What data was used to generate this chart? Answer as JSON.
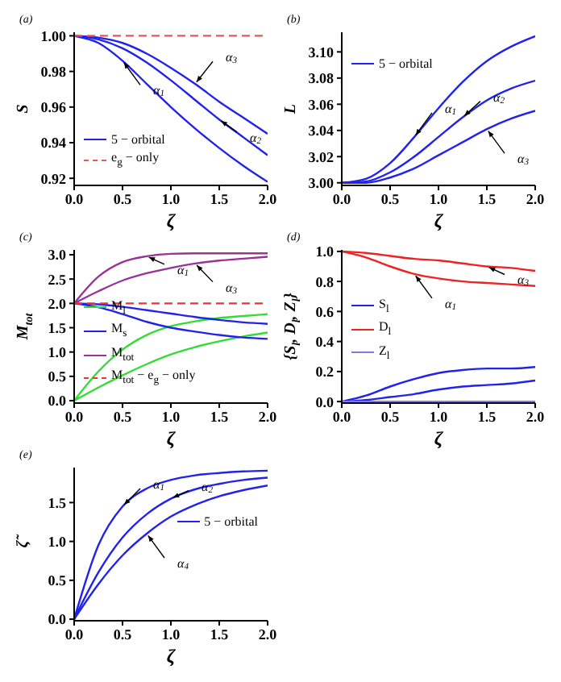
{
  "chart_data": [
    {
      "type": "line",
      "title": "(a)",
      "xlabel": "ζ",
      "ylabel": "S",
      "x": [
        0,
        0.25,
        0.5,
        0.75,
        1,
        1.25,
        1.5,
        1.75,
        2
      ],
      "xlim": [
        0,
        2
      ],
      "xticks": [
        {
          "value": 0,
          "label": "0.0"
        },
        {
          "value": 0.5,
          "label": "0.5"
        },
        {
          "value": 1,
          "label": "1.0"
        },
        {
          "value": 1.5,
          "label": "1.5"
        },
        {
          "value": 2,
          "label": "2.0"
        }
      ],
      "ylim": [
        0.916,
        1.002
      ],
      "yticks": [
        0.92,
        0.94,
        0.96,
        0.98,
        {
          "value": 1,
          "label": "1.00"
        }
      ],
      "legend": "bottom left",
      "marker": "none",
      "line_style": "solid",
      "series": [
        {
          "name": "5 − orbital",
          "color": "#2222ee",
          "values": [
            1,
            0.996,
            0.986,
            0.973,
            0.96,
            0.948,
            0.937,
            0.927,
            0.918
          ]
        },
        {
          "color": "#2222ee",
          "values": [
            1,
            0.998,
            0.993,
            0.985,
            0.975,
            0.964,
            0.953,
            0.943,
            0.933
          ]
        },
        {
          "color": "#2222ee",
          "values": [
            1,
            0.999,
            0.996,
            0.99,
            0.982,
            0.973,
            0.963,
            0.954,
            0.945
          ]
        },
        {
          "name": "e$_{g}$ − only",
          "color": "#ee5555",
          "line_style": "dashed",
          "values": [
            1,
            1,
            1,
            1,
            1,
            1,
            1,
            1,
            1
          ]
        }
      ],
      "annotations": [
        {
          "text": "α$_{1}$",
          "x": 0.5,
          "y": 0.986
        },
        {
          "text": "α$_{2}$",
          "x": 1.5,
          "y": 0.953
        },
        {
          "text": "α$_{3}$",
          "x": 1.25,
          "y": 0.973
        }
      ]
    },
    {
      "type": "line",
      "title": "(b)",
      "xlabel": "ζ",
      "ylabel": "L",
      "x": [
        0,
        0.25,
        0.5,
        0.75,
        1,
        1.25,
        1.5,
        1.75,
        2
      ],
      "xlim": [
        0,
        2
      ],
      "xticks": [
        {
          "value": 0,
          "label": "0.0"
        },
        {
          "value": 0.5,
          "label": "0.5"
        },
        {
          "value": 1,
          "label": "1.0"
        },
        {
          "value": 1.5,
          "label": "1.5"
        },
        {
          "value": 2,
          "label": "2.0"
        }
      ],
      "ylim": [
        2.998,
        3.115
      ],
      "yticks": [
        {
          "value": 3,
          "label": "3.00"
        },
        3.02,
        3.04,
        3.06,
        3.08,
        {
          "value": 3.1,
          "label": "3.10"
        }
      ],
      "legend": "top left",
      "marker": "none",
      "line_style": "solid",
      "series": [
        {
          "name": "5 − orbital",
          "color": "#2222ee",
          "values": [
            3,
            3.003,
            3.015,
            3.035,
            3.057,
            3.077,
            3.093,
            3.104,
            3.112
          ]
        },
        {
          "color": "#2222ee",
          "values": [
            3,
            3.001,
            3.008,
            3.02,
            3.035,
            3.05,
            3.063,
            3.072,
            3.078
          ]
        },
        {
          "color": "#2222ee",
          "values": [
            3,
            3.0,
            3.004,
            3.011,
            3.021,
            3.031,
            3.041,
            3.049,
            3.055
          ]
        }
      ],
      "annotations": [
        {
          "text": "α$_{1}$",
          "x": 0.75,
          "y": 3.035
        },
        {
          "text": "α$_{2}$",
          "x": 1.25,
          "y": 3.05
        },
        {
          "text": "α$_{3}$",
          "x": 1.5,
          "y": 3.041
        }
      ]
    },
    {
      "type": "line",
      "title": "(c)",
      "xlabel": "ζ",
      "ylabel": "M$_{tot}$",
      "x": [
        0,
        0.25,
        0.5,
        0.75,
        1,
        1.25,
        1.5,
        1.75,
        2
      ],
      "xlim": [
        0,
        2
      ],
      "xticks": [
        {
          "value": 0,
          "label": "0.0"
        },
        {
          "value": 0.5,
          "label": "0.5"
        },
        {
          "value": 1,
          "label": "1.0"
        },
        {
          "value": 1.5,
          "label": "1.5"
        },
        {
          "value": 2,
          "label": "2.0"
        }
      ],
      "ylim": [
        -0.05,
        3.1
      ],
      "yticks": [
        {
          "value": 0,
          "label": "0.0"
        },
        0.5,
        {
          "value": 1,
          "label": "1.0"
        },
        1.5,
        {
          "value": 2,
          "label": "2.0"
        },
        2.5,
        {
          "value": 3,
          "label": "3.0"
        }
      ],
      "legend": "bottom left",
      "marker": "none",
      "line_style": "solid",
      "series": [
        {
          "name": "M$_{l}$",
          "color": "#33dd33",
          "values": [
            0,
            0.6,
            1.05,
            1.35,
            1.53,
            1.63,
            1.7,
            1.74,
            1.78
          ]
        },
        {
          "color": "#33dd33",
          "values": [
            0,
            0.27,
            0.52,
            0.75,
            0.95,
            1.1,
            1.22,
            1.32,
            1.4
          ]
        },
        {
          "name": "M$_{s}$",
          "color": "#2222ee",
          "values": [
            2,
            1.92,
            1.78,
            1.62,
            1.5,
            1.42,
            1.35,
            1.3,
            1.27
          ]
        },
        {
          "color": "#2222ee",
          "values": [
            2,
            1.98,
            1.93,
            1.86,
            1.79,
            1.72,
            1.66,
            1.61,
            1.58
          ]
        },
        {
          "name": "M$_{tot}$",
          "color": "#993399",
          "values": [
            2,
            2.55,
            2.85,
            2.97,
            3.02,
            3.03,
            3.03,
            3.03,
            3.03
          ]
        },
        {
          "color": "#993399",
          "values": [
            2,
            2.25,
            2.47,
            2.62,
            2.73,
            2.82,
            2.88,
            2.92,
            2.96
          ]
        },
        {
          "name": "M$_{tot}$ − e$_{g}$ − only",
          "color": "#ee3333",
          "line_style": "dashed",
          "values": [
            2,
            2,
            2,
            2,
            2,
            2,
            2,
            2,
            2
          ]
        }
      ],
      "annotations": [
        {
          "text": "α$_{1}$",
          "x": 0.75,
          "y": 2.97
        },
        {
          "text": "α$_{3}$",
          "x": 1.25,
          "y": 2.82
        }
      ]
    },
    {
      "type": "line",
      "title": "(d)",
      "xlabel": "ζ",
      "ylabel": "{S$_{l}$, D$_{l}$, Z$_{l}$}",
      "x": [
        0,
        0.25,
        0.5,
        0.75,
        1,
        1.25,
        1.5,
        1.75,
        2
      ],
      "xlim": [
        0,
        2
      ],
      "xticks": [
        {
          "value": 0,
          "label": "0.0"
        },
        {
          "value": 0.5,
          "label": "0.5"
        },
        {
          "value": 1,
          "label": "1.0"
        },
        {
          "value": 1.5,
          "label": "1.5"
        },
        {
          "value": 2,
          "label": "2.0"
        }
      ],
      "ylim": [
        -0.01,
        1.01
      ],
      "yticks": [
        {
          "value": 0,
          "label": "0.0"
        },
        0.2,
        0.4,
        0.6,
        0.8,
        {
          "value": 1,
          "label": "1.0"
        }
      ],
      "legend": "left",
      "marker": "none",
      "line_style": "solid",
      "series": [
        {
          "name": "S$_{l}$",
          "color": "#2222ee",
          "values": [
            0,
            0.04,
            0.1,
            0.15,
            0.19,
            0.21,
            0.22,
            0.22,
            0.23
          ]
        },
        {
          "color": "#2222ee",
          "values": [
            0,
            0.01,
            0.03,
            0.05,
            0.08,
            0.1,
            0.11,
            0.12,
            0.14
          ]
        },
        {
          "name": "D$_{l}$",
          "color": "#ee2222",
          "values": [
            1,
            0.96,
            0.9,
            0.85,
            0.82,
            0.8,
            0.79,
            0.78,
            0.77
          ]
        },
        {
          "color": "#ee2222",
          "values": [
            1,
            0.99,
            0.97,
            0.95,
            0.94,
            0.92,
            0.9,
            0.89,
            0.87
          ]
        },
        {
          "name": "Z$_{l}$",
          "color": "#8877dd",
          "values": [
            0,
            0,
            0,
            0,
            0,
            0,
            0,
            0,
            0
          ]
        }
      ],
      "annotations": [
        {
          "text": "α$_{1}$",
          "x": 0.75,
          "y": 0.85
        },
        {
          "text": "α$_{3}$",
          "x": 1.5,
          "y": 0.9
        }
      ]
    },
    {
      "type": "line",
      "title": "(e)",
      "xlabel": "ζ",
      "ylabel": "ζ̃",
      "x": [
        0,
        0.25,
        0.5,
        0.75,
        1,
        1.25,
        1.5,
        1.75,
        2
      ],
      "xlim": [
        0,
        2
      ],
      "xticks": [
        {
          "value": 0,
          "label": "0.0"
        },
        {
          "value": 0.5,
          "label": "0.5"
        },
        {
          "value": 1,
          "label": "1.0"
        },
        {
          "value": 1.5,
          "label": "1.5"
        },
        {
          "value": 2,
          "label": "2.0"
        }
      ],
      "ylim": [
        -0.02,
        1.95
      ],
      "yticks": [
        {
          "value": 0,
          "label": "0.0"
        },
        0.5,
        {
          "value": 1,
          "label": "1.0"
        },
        1.5
      ],
      "legend": "right",
      "marker": "none",
      "line_style": "solid",
      "series": [
        {
          "name": "5 − orbital",
          "color": "#2222ee",
          "values": [
            0,
            0.95,
            1.45,
            1.68,
            1.79,
            1.85,
            1.88,
            1.9,
            1.91
          ]
        },
        {
          "color": "#2222ee",
          "values": [
            0,
            0.6,
            1.05,
            1.35,
            1.55,
            1.67,
            1.74,
            1.79,
            1.82
          ]
        },
        {
          "color": "#2222ee",
          "values": [
            0,
            0.45,
            0.82,
            1.1,
            1.32,
            1.47,
            1.58,
            1.66,
            1.72
          ]
        }
      ],
      "annotations": [
        {
          "text": "α$_{1}$",
          "x": 0.5,
          "y": 1.45
        },
        {
          "text": "α$_{2}$",
          "x": 1,
          "y": 1.55
        },
        {
          "text": "α$_{4}$",
          "x": 0.75,
          "y": 1.1
        }
      ]
    }
  ]
}
